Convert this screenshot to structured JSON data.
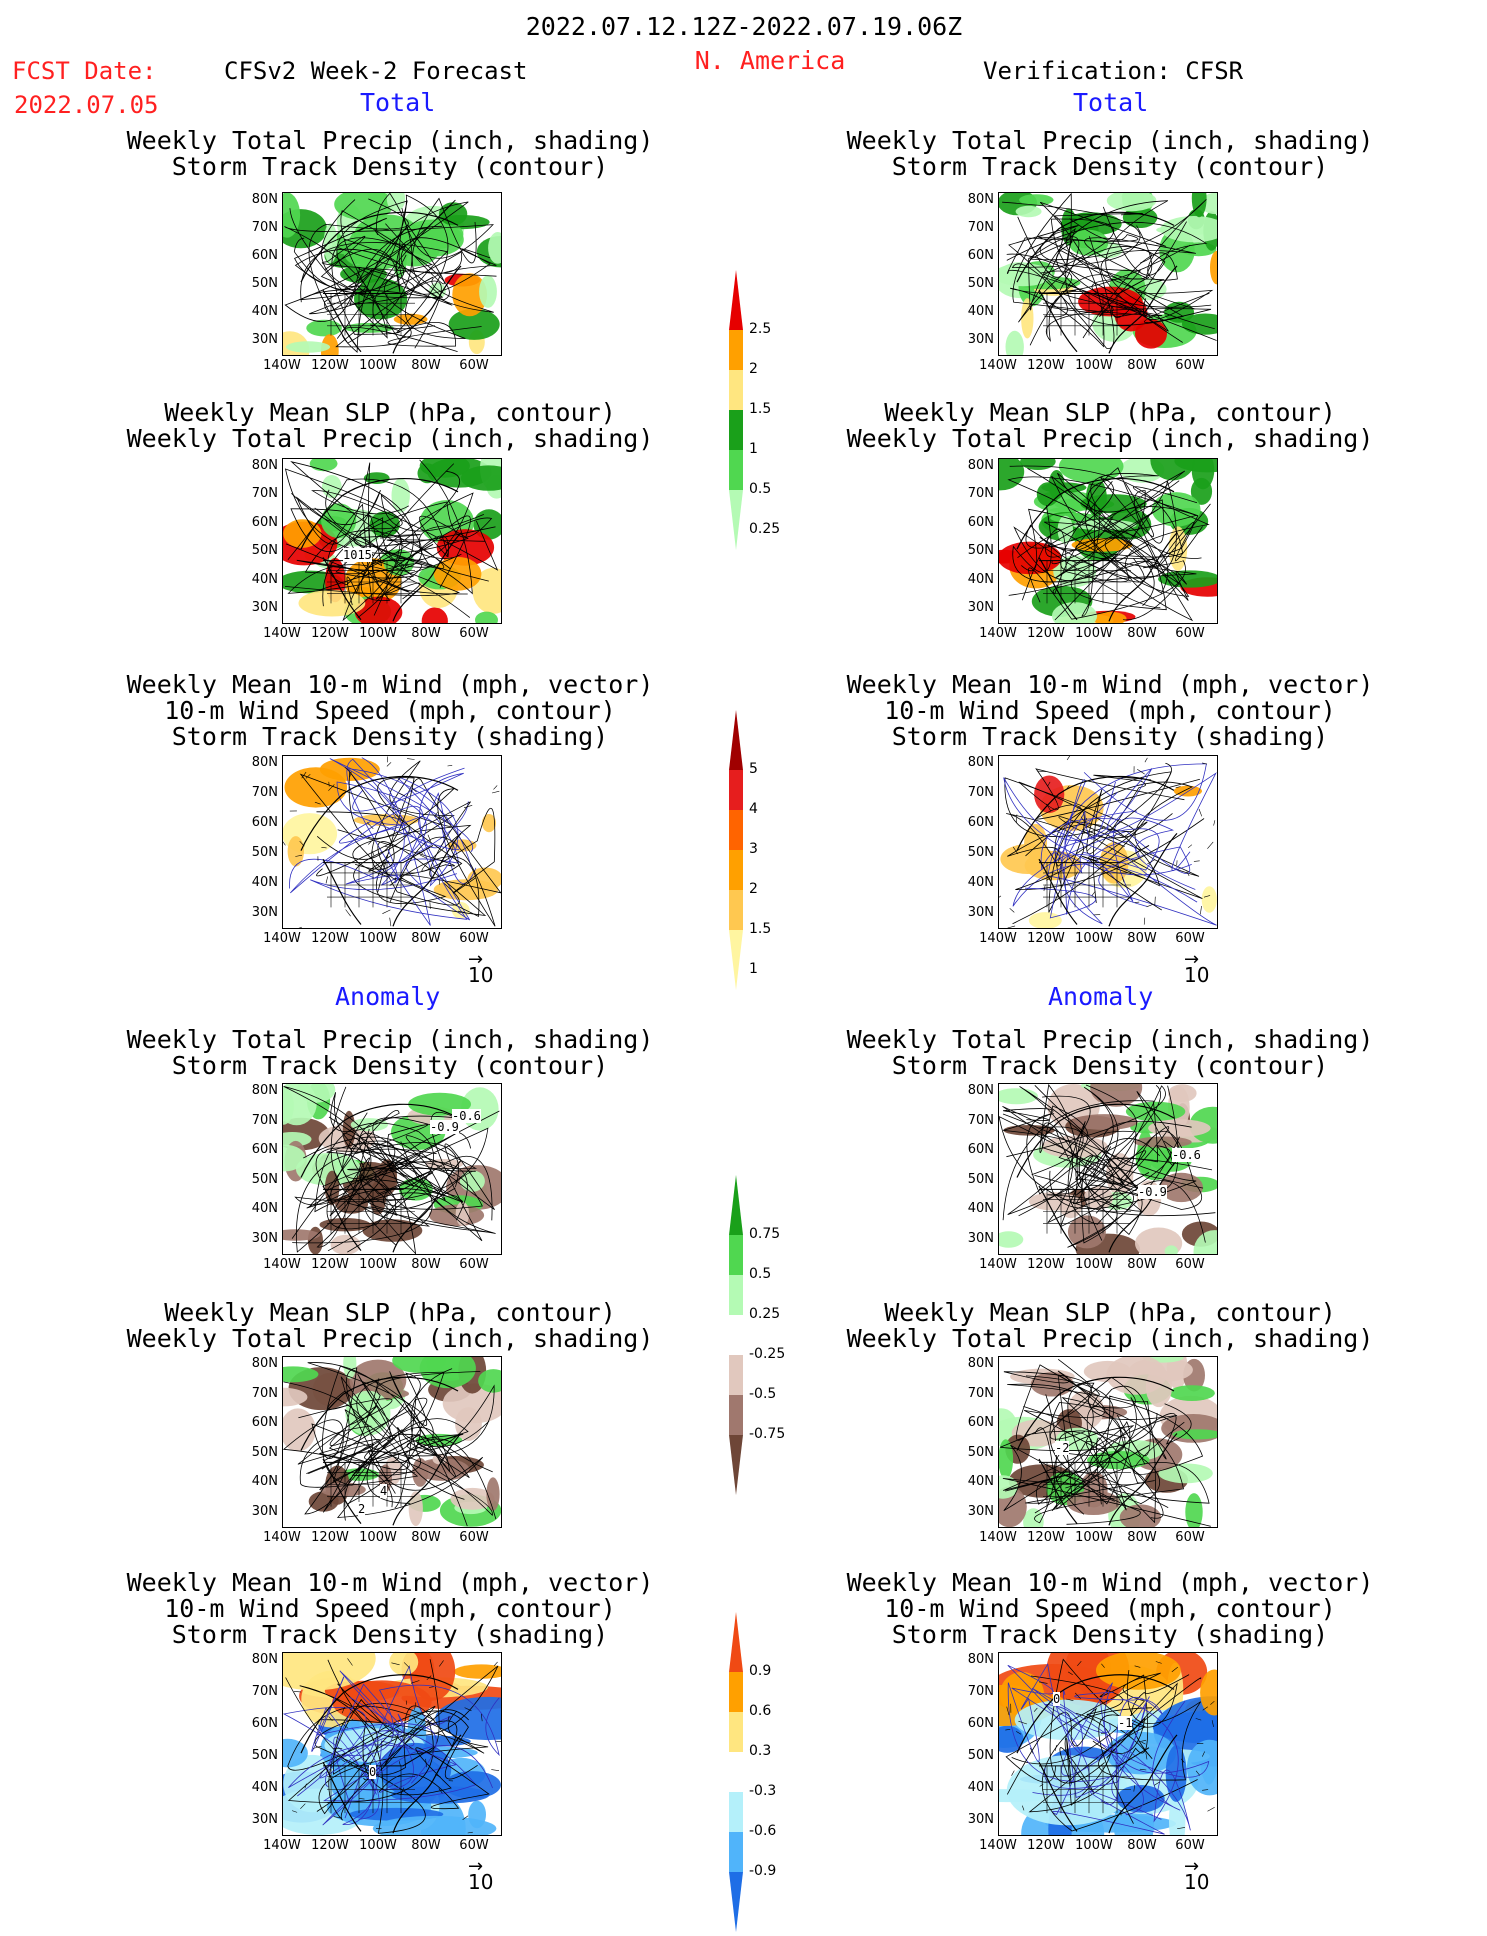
{
  "header": {
    "period": "2022.07.12.12Z-2022.07.19.06Z",
    "region": "N. America",
    "fcst_label": "FCST Date:",
    "fcst_date": "2022.07.05",
    "model": "CFSv2 Week-2 Forecast",
    "verification": "Verification: CFSR"
  },
  "sections": {
    "total": "Total",
    "anomaly": "Anomaly"
  },
  "titles": {
    "precip": [
      "Weekly Total Precip (inch, shading)",
      "Storm Track Density (contour)"
    ],
    "slp": [
      "Weekly Mean SLP (hPa, contour)",
      "Weekly Total Precip (inch, shading)"
    ],
    "wind": [
      "Weekly Mean 10-m Wind (mph, vector)",
      "10-m Wind Speed (mph, contour)",
      "Storm Track Density (shading)"
    ]
  },
  "axes": {
    "lat_labels": [
      "80N",
      "70N",
      "60N",
      "50N",
      "40N",
      "30N"
    ],
    "lon_labels": [
      "140W",
      "120W",
      "100W",
      "80W",
      "60W"
    ]
  },
  "vector_ref": "10",
  "panel_labels": {
    "fcst_slp_total": "1015",
    "fcst_precip_anom_a": "-0.6",
    "fcst_precip_anom_b": "-0.9",
    "obs_precip_anom_a": "-0.6",
    "obs_precip_anom_b": "-0.9",
    "fcst_slp_anom_a": "2",
    "fcst_slp_anom_b": "4",
    "obs_slp_anom_a": "-2",
    "fcst_wind_anom": "0",
    "obs_wind_anom_a": "0",
    "obs_wind_anom_b": "-1"
  },
  "colorbars": {
    "precip_total": {
      "labels": [
        "2.5",
        "2",
        "1.5",
        "1",
        "0.5",
        "0.25"
      ],
      "colors": [
        "#e60000",
        "#ffa000",
        "#ffe680",
        "#1aa01a",
        "#50d750",
        "#b4fab4"
      ]
    },
    "storm_total": {
      "labels": [
        "5",
        "4",
        "3",
        "2",
        "1.5",
        "1"
      ],
      "colors": [
        "#a00000",
        "#e61e1e",
        "#ff6400",
        "#ffa000",
        "#ffc850",
        "#fff5a0"
      ]
    },
    "precip_anom": {
      "labels": [
        "0.75",
        "0.5",
        "0.25",
        "-0.25",
        "-0.5",
        "-0.75"
      ],
      "colors": [
        "#1aa01a",
        "#50d750",
        "#b4fab4",
        "#ffffff",
        "#e1c8be",
        "#a0786e",
        "#6e4637"
      ]
    },
    "storm_anom": {
      "labels": [
        "0.9",
        "0.6",
        "0.3",
        "-0.3",
        "-0.6",
        "-0.9"
      ],
      "colors": [
        "#f04a14",
        "#ffa000",
        "#ffe680",
        "#ffffff",
        "#b4f0fa",
        "#50b4fa",
        "#1e6ee6"
      ]
    }
  }
}
